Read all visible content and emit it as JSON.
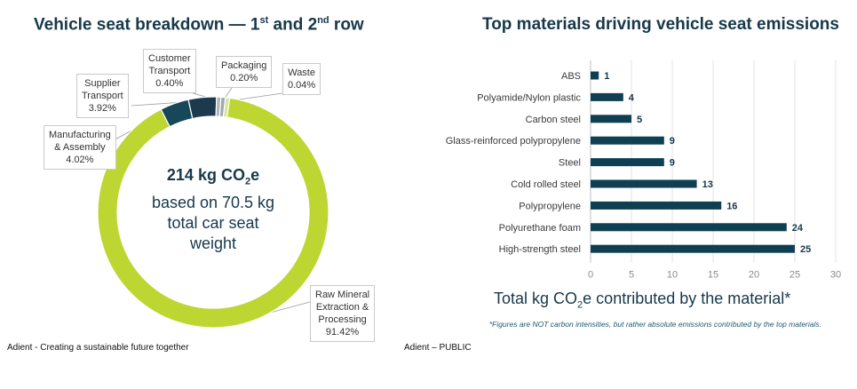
{
  "left_title": {
    "prefix": "Vehicle seat breakdown — 1",
    "sup1": "st",
    "mid": " and 2",
    "sup2": "nd",
    "suffix": " row"
  },
  "right_title": "Top materials driving vehicle seat emissions",
  "center_text": {
    "line1_a": "214 kg CO",
    "line1_sub": "2",
    "line1_b": "e",
    "line2": "based on 70.5 kg",
    "line3": "total car seat",
    "line4": "weight"
  },
  "donut_segments": [
    {
      "label_lines": [
        "Raw Mineral",
        "Extraction &",
        "Processing"
      ],
      "percent": "91.42%",
      "value": 91.42,
      "color": "#bdd631"
    },
    {
      "label_lines": [
        "Manufacturing",
        "& Assembly"
      ],
      "percent": "4.02%",
      "value": 4.02,
      "color": "#16485a"
    },
    {
      "label_lines": [
        "Supplier",
        "Transport"
      ],
      "percent": "3.92%",
      "value": 3.92,
      "color": "#1b3a4c"
    },
    {
      "label_lines": [
        "Customer",
        "Transport"
      ],
      "percent": "0.40%",
      "value": 0.4,
      "color": "#b5b5b5"
    },
    {
      "label_lines": [
        "Packaging"
      ],
      "percent": "0.20%",
      "value": 0.2,
      "color": "#9aaab0"
    },
    {
      "label_lines": [
        "Waste"
      ],
      "percent": "0.04%",
      "value": 0.04,
      "color": "#d8e6a0"
    }
  ],
  "chart_data": [
    {
      "type": "pie",
      "title": "Vehicle seat breakdown — 1st and 2nd row",
      "categories": [
        "Raw Mineral Extraction & Processing",
        "Manufacturing & Assembly",
        "Supplier Transport",
        "Customer Transport",
        "Packaging",
        "Waste"
      ],
      "values": [
        91.42,
        4.02,
        3.92,
        0.4,
        0.2,
        0.04
      ],
      "unit": "%"
    },
    {
      "type": "bar",
      "orientation": "horizontal",
      "title": "Top materials driving vehicle seat emissions",
      "categories": [
        "ABS",
        "Polyamide/Nylon plastic",
        "Carbon steel",
        "Glass-reinforced polypropylene",
        "Steel",
        "Cold rolled steel",
        "Polypropylene",
        "Polyurethane foam",
        "High-strength steel"
      ],
      "values": [
        1,
        4,
        5,
        9,
        9,
        13,
        16,
        24,
        25
      ],
      "xlim": [
        0,
        30
      ],
      "xticks": [
        0,
        5,
        10,
        15,
        20,
        25,
        30
      ],
      "xlabel": "Total kg CO2e contributed by the material*",
      "bar_color": "#0f3f52"
    }
  ],
  "axis_title": {
    "a": "Total kg CO",
    "sub": "2",
    "b": "e contributed by the material*"
  },
  "footnote": "*Figures are NOT carbon intensities, but rather absolute emissions contributed by the top materials.",
  "footer_left": "Adient - Creating a sustainable future together",
  "footer_right": "Adient – PUBLIC"
}
